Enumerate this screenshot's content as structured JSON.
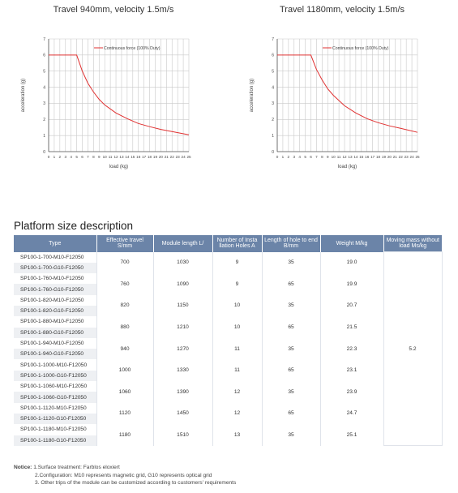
{
  "chart_data": [
    {
      "type": "line",
      "title": "Travel 940mm, velocity 1.5m/s",
      "xlabel": "load (kg)",
      "ylabel": "acceleration (g)",
      "xlim": [
        0,
        25
      ],
      "ylim": [
        0,
        7
      ],
      "x_ticks": [
        0,
        1,
        2,
        3,
        4,
        5,
        6,
        7,
        8,
        9,
        10,
        11,
        12,
        13,
        14,
        15,
        16,
        17,
        18,
        19,
        20,
        21,
        22,
        23,
        24,
        25
      ],
      "y_ticks": [
        0,
        1,
        2,
        3,
        4,
        5,
        6,
        7
      ],
      "series": [
        {
          "name": "Continuous force (100% Duty)",
          "color": "#e03030",
          "x": [
            0,
            5,
            6,
            7,
            8,
            9,
            10,
            12,
            14,
            16,
            18,
            20,
            22,
            25
          ],
          "y": [
            6,
            6,
            5.0,
            4.25,
            3.7,
            3.25,
            2.9,
            2.4,
            2.05,
            1.75,
            1.55,
            1.38,
            1.25,
            1.05
          ]
        }
      ]
    },
    {
      "type": "line",
      "title": "Travel 1180mm, velocity 1.5m/s",
      "xlabel": "load (kg)",
      "ylabel": "acceleration (g)",
      "xlim": [
        0,
        25
      ],
      "ylim": [
        0,
        7
      ],
      "x_ticks": [
        0,
        1,
        2,
        3,
        4,
        5,
        6,
        7,
        8,
        9,
        10,
        11,
        12,
        13,
        14,
        15,
        16,
        17,
        18,
        19,
        20,
        21,
        22,
        23,
        24,
        25
      ],
      "y_ticks": [
        0,
        1,
        2,
        3,
        4,
        5,
        6,
        7
      ],
      "series": [
        {
          "name": "Continuous force (100% Duty)",
          "color": "#e03030",
          "x": [
            0,
            6,
            7,
            8,
            9,
            10,
            12,
            14,
            16,
            18,
            20,
            22,
            25
          ],
          "y": [
            6,
            6,
            5.1,
            4.45,
            3.9,
            3.5,
            2.85,
            2.4,
            2.05,
            1.8,
            1.6,
            1.45,
            1.2
          ]
        }
      ]
    }
  ],
  "section": {
    "title": "Platform size description"
  },
  "table": {
    "headers": [
      "Type",
      "Effective travel S/mm",
      "Module length L/",
      "Number of Insta llation Holes A",
      "Length of hole to end B/mm",
      "Weight M/kg",
      "Moving mass without load Ms/kg"
    ],
    "groups": [
      {
        "types": [
          "SP100-1-700-M10-F12050",
          "SP100-1-700-G10-F12050"
        ],
        "travel": "700",
        "length": "1030",
        "holes": "9",
        "hole_end": "35",
        "weight": "19.0"
      },
      {
        "types": [
          "SP100-1-760-M10-F12050",
          "SP100-1-760-G10-F12050"
        ],
        "travel": "760",
        "length": "1090",
        "holes": "9",
        "hole_end": "65",
        "weight": "19.9"
      },
      {
        "types": [
          "SP100-1-820-M10-F12050",
          "SP100-1-820-G10-F12050"
        ],
        "travel": "820",
        "length": "1150",
        "holes": "10",
        "hole_end": "35",
        "weight": "20.7"
      },
      {
        "types": [
          "SP100-1-880-M10-F12050",
          "SP100-1-880-G10-F12050"
        ],
        "travel": "880",
        "length": "1210",
        "holes": "10",
        "hole_end": "65",
        "weight": "21.5"
      },
      {
        "types": [
          "SP100-1-940-M10-F12050",
          "SP100-1-940-G10-F12050"
        ],
        "travel": "940",
        "length": "1270",
        "holes": "11",
        "hole_end": "35",
        "weight": "22.3"
      },
      {
        "types": [
          "SP100-1-1000-M10-F12050",
          "SP100-1-1000-G10-F12050"
        ],
        "travel": "1000",
        "length": "1330",
        "holes": "11",
        "hole_end": "65",
        "weight": "23.1"
      },
      {
        "types": [
          "SP100-1-1060-M10-F12050",
          "SP100-1-1060-G10-F12050"
        ],
        "travel": "1060",
        "length": "1390",
        "holes": "12",
        "hole_end": "35",
        "weight": "23.9"
      },
      {
        "types": [
          "SP100-1-1120-M10-F12050",
          "SP100-1-1120-G10-F12050"
        ],
        "travel": "1120",
        "length": "1450",
        "holes": "12",
        "hole_end": "65",
        "weight": "24.7"
      },
      {
        "types": [
          "SP100-1-1180-M10-F12050",
          "SP100-1-1180-G10-F12050"
        ],
        "travel": "1180",
        "length": "1510",
        "holes": "13",
        "hole_end": "35",
        "weight": "25.1"
      }
    ],
    "moving_mass": "5.2"
  },
  "notes": {
    "label": "Notice:",
    "lines": [
      "1.Surface treatment: Farblos eloxiert",
      "2.Configuration: M10 represents magnetic grid, G10 represents optical grid",
      "3. Other trips of the module can be customized according to customers' requirements"
    ]
  }
}
